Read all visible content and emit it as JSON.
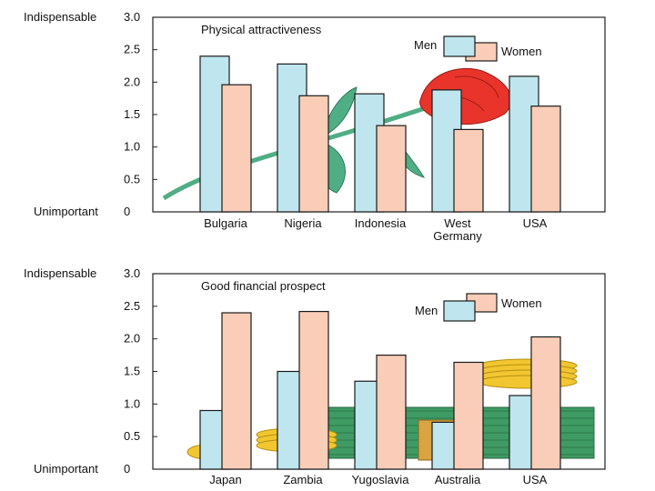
{
  "colors": {
    "men": "#bfe6ef",
    "women": "#f9cdb8",
    "bar_stroke": "#1a1a1a",
    "rose": "#e8342a",
    "leaf": "#4fae84",
    "coin": "#f2c630",
    "bill": "#3f9a63"
  },
  "chart_data": [
    {
      "type": "bar",
      "title": "Physical attractiveness",
      "ylabel_top": "Indispensable",
      "ylabel_bottom": "Unimportant",
      "yticks": [
        "3.0",
        "2.5",
        "2.0",
        "1.5",
        "1.0",
        "0.5",
        "0"
      ],
      "ylim": [
        0,
        3
      ],
      "categories": [
        "Bulgaria",
        "Nigeria",
        "Indonesia",
        "West Germany",
        "USA"
      ],
      "category_lines": [
        [
          "Bulgaria"
        ],
        [
          "Nigeria"
        ],
        [
          "Indonesia"
        ],
        [
          "West",
          "Germany"
        ],
        [
          "USA"
        ]
      ],
      "series": [
        {
          "name": "Men",
          "values": [
            2.4,
            2.28,
            1.82,
            1.88,
            2.09
          ]
        },
        {
          "name": "Women",
          "values": [
            1.96,
            1.79,
            1.33,
            1.27,
            1.63
          ]
        }
      ],
      "legend": {
        "men": "Men",
        "women": "Women",
        "placement": "top-right"
      },
      "decoration": "rose"
    },
    {
      "type": "bar",
      "title": "Good financial prospect",
      "ylabel_top": "Indispensable",
      "ylabel_bottom": "Unimportant",
      "yticks": [
        "3.0",
        "2.5",
        "2.0",
        "1.5",
        "1.0",
        "0.5",
        "0"
      ],
      "ylim": [
        0,
        3
      ],
      "categories": [
        "Japan",
        "Zambia",
        "Yugoslavia",
        "Australia",
        "USA"
      ],
      "category_lines": [
        [
          "Japan"
        ],
        [
          "Zambia"
        ],
        [
          "Yugoslavia"
        ],
        [
          "Australia"
        ],
        [
          "USA"
        ]
      ],
      "series": [
        {
          "name": "Men",
          "values": [
            0.9,
            1.5,
            1.35,
            0.72,
            1.13
          ]
        },
        {
          "name": "Women",
          "values": [
            2.4,
            2.42,
            1.75,
            1.64,
            2.03
          ]
        }
      ],
      "legend": {
        "men": "Men",
        "women": "Women",
        "placement": "top-right"
      },
      "decoration": "money"
    }
  ]
}
